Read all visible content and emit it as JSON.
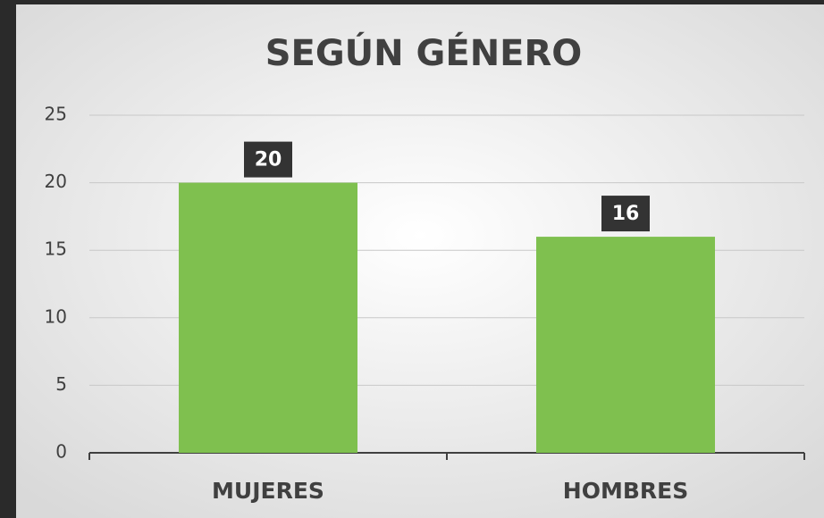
{
  "chart_data": {
    "type": "bar",
    "title": "SEGÚN GÉNERO",
    "categories": [
      "MUJERES",
      "HOMBRES"
    ],
    "values": [
      20,
      16
    ],
    "color": "#7fc04f",
    "ylim": [
      0,
      25
    ],
    "yticks": [
      0,
      5,
      10,
      15,
      20,
      25
    ],
    "grid": true
  }
}
